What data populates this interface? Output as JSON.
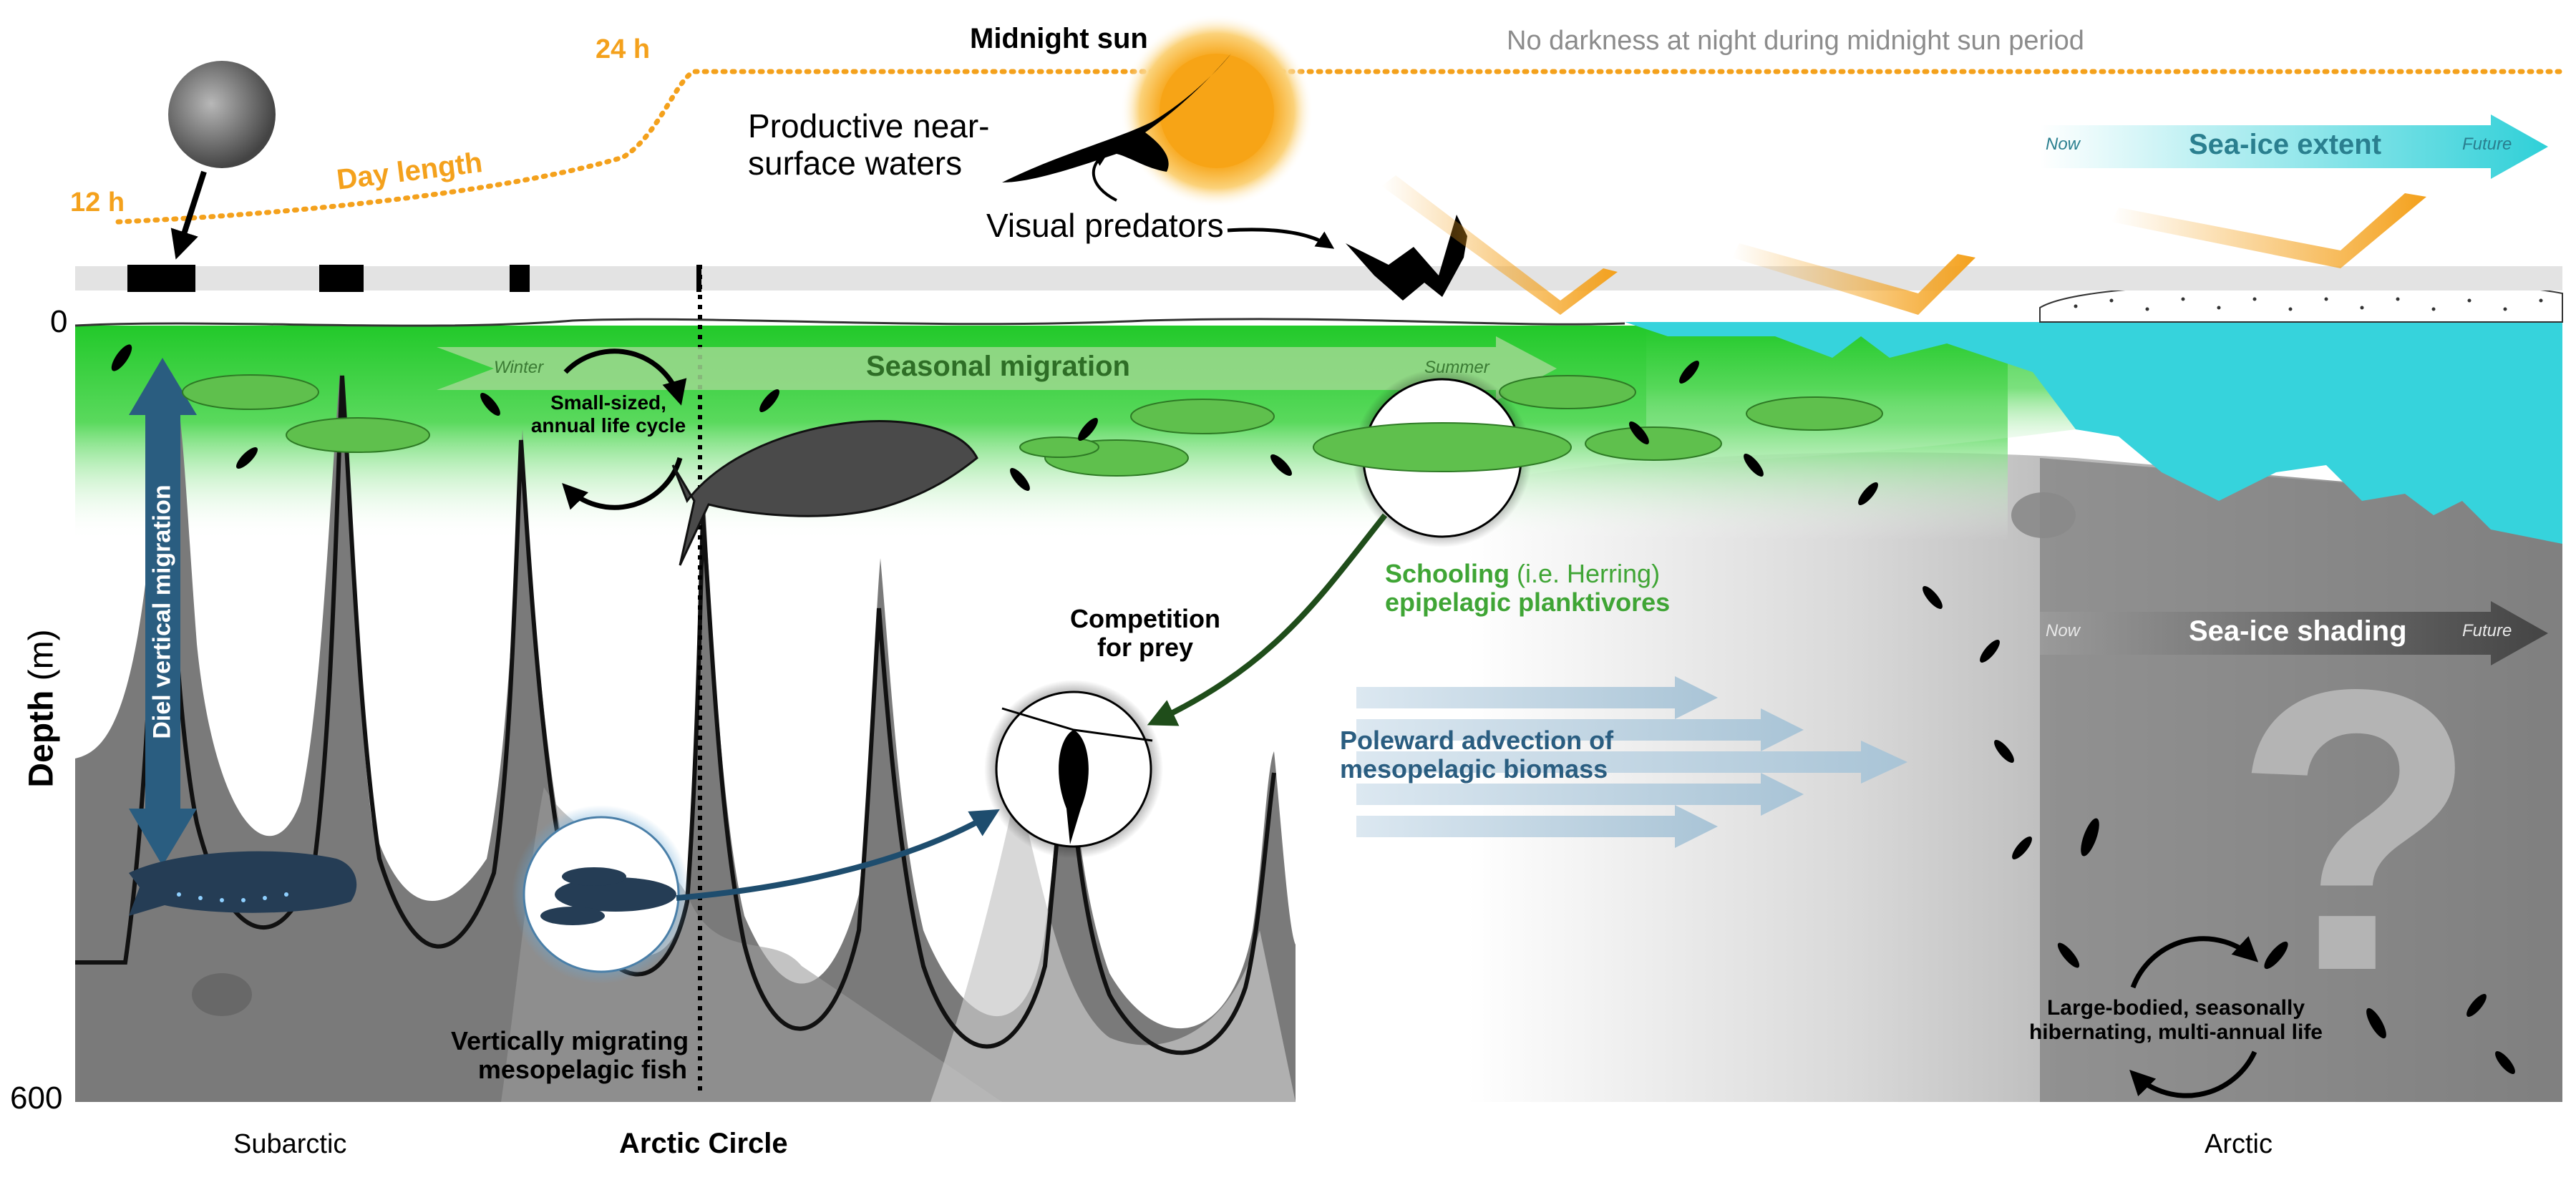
{
  "top": {
    "day_length_label": "Day length",
    "hours_12": "12 h",
    "hours_24": "24 h",
    "midnight_sun": "Midnight sun",
    "no_darkness": "No darkness at night during midnight sun period",
    "productive_waters": [
      "Productive near-",
      "surface waters"
    ],
    "visual_predators": "Visual predators"
  },
  "seaice": {
    "extent_label": "Sea-ice extent",
    "shading_label": "Sea-ice shading",
    "now": "Now",
    "future": "Future"
  },
  "ocean": {
    "seasonal_migration": "Seasonal migration",
    "winter": "Winter",
    "summer": "Summer",
    "small_life_cycle": [
      "Small-sized,",
      "annual life cycle"
    ],
    "large_life_cycle": [
      "Large-bodied, seasonally",
      "hibernating, multi-annual life"
    ],
    "diel_vertical_migration": "Diel vertical migration",
    "competition": [
      "Competition",
      "for prey"
    ],
    "schooling_main": "Schooling",
    "schooling_paren": "(i.e. Herring)",
    "epipelagic": "epipelagic planktivores",
    "poleward": [
      "Poleward advection of",
      "mesopelagic biomass"
    ],
    "mesopelagic_fish": [
      "Vertically migrating",
      "mesopelagic fish"
    ],
    "question_mark": "?"
  },
  "axis": {
    "depth_word": "Depth",
    "depth_unit": "(m)",
    "depth_top": "0",
    "depth_bottom": "600"
  },
  "regions": {
    "subarctic": "Subarctic",
    "arctic_circle": "Arctic Circle",
    "arctic": "Arctic"
  },
  "colors": {
    "orange": "#f4a11c",
    "green": "#3fa535",
    "ice": "#36d3dc",
    "blue_arrow": "#2a5d80",
    "gray_deep": "#7a7a7a"
  }
}
